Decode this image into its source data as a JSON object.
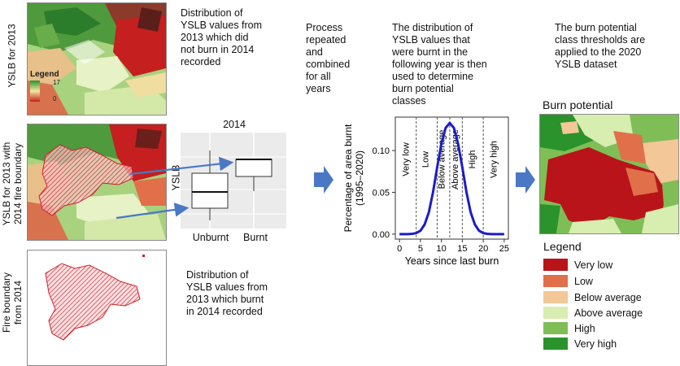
{
  "row_labels": {
    "top": "YSLB for 2013",
    "middle_line1": "YSLB for 2013 with",
    "middle_line2": "2014 fire boundary",
    "bottom_line1": "Fire boundary",
    "bottom_line2": "from 2014"
  },
  "map_legend": {
    "title": "Legend",
    "max": "17",
    "min": "0"
  },
  "captions": {
    "unburnt": [
      "Distribution of",
      "YSLB values from",
      "2013 which did",
      "not burn in 2014",
      "recorded"
    ],
    "burnt": [
      "Distribution of",
      "YSLB values from",
      "2013 which burnt",
      "in 2014 recorded"
    ],
    "process": [
      "Process",
      "repeated",
      "and",
      "combined",
      "for all",
      "years"
    ],
    "distribution": [
      "The distribution of",
      "YSLB values that",
      "were burnt in the",
      "following year is then",
      "used to determine",
      "burn potential",
      "classes"
    ],
    "thresholds": [
      "The burn potential",
      "class thresholds are",
      "applied to the 2020",
      "YSLB dataset"
    ]
  },
  "boxplot": {
    "title": "2014",
    "ylabel": "YSLB",
    "categories": [
      "Unburnt",
      "Burnt"
    ]
  },
  "burn_potential_title": "Burn potential",
  "chart_data": {
    "type": "line",
    "title": "",
    "xlabel": "Years since last burn",
    "ylabel_line1": "Percentage of area burnt",
    "ylabel_line2": "(1995–2020)",
    "xlim": [
      -1,
      26
    ],
    "ylim": [
      -0.006,
      0.14
    ],
    "xticks": [
      0,
      5,
      10,
      15,
      20,
      25
    ],
    "yticks": [
      0.0,
      0.05,
      0.1
    ],
    "ytick_labels": [
      "0.00",
      "0.05",
      "0.10"
    ],
    "thresholds": [
      4,
      9,
      12,
      15,
      20
    ],
    "class_labels": [
      {
        "label": "Very low",
        "x": 1.6
      },
      {
        "label": "Low",
        "x": 6.3
      },
      {
        "label": "Below average",
        "x": 10.2
      },
      {
        "label": "Above average",
        "x": 13.4
      },
      {
        "label": "High",
        "x": 17.5
      },
      {
        "label": "Very high",
        "x": 22.6
      }
    ],
    "curve": {
      "x": [
        0,
        1,
        2,
        3,
        4,
        5,
        6,
        7,
        8,
        9,
        10,
        11,
        12,
        13,
        14,
        15,
        16,
        17,
        18,
        19,
        20,
        21,
        22,
        23,
        24,
        25
      ],
      "y": [
        0.0,
        0.0,
        0.0,
        0.0003,
        0.0012,
        0.004,
        0.0115,
        0.026,
        0.05,
        0.08,
        0.108,
        0.127,
        0.133,
        0.127,
        0.108,
        0.08,
        0.05,
        0.026,
        0.0115,
        0.004,
        0.0012,
        0.0003,
        0.0,
        0.0,
        0.0,
        0.0
      ]
    },
    "line_color": "#1c1cc8"
  },
  "legend": {
    "title": "Legend",
    "items": [
      {
        "label": "Very low",
        "color": "#b8141a"
      },
      {
        "label": "Low",
        "color": "#e06f4a"
      },
      {
        "label": "Below average",
        "color": "#f3c797"
      },
      {
        "label": "Above average",
        "color": "#d8edb0"
      },
      {
        "label": "High",
        "color": "#7fbe56"
      },
      {
        "label": "Very high",
        "color": "#2b932b"
      }
    ]
  },
  "colors": {
    "arrow": "#4a78c4",
    "fire_hatch": "#d41e2a"
  }
}
